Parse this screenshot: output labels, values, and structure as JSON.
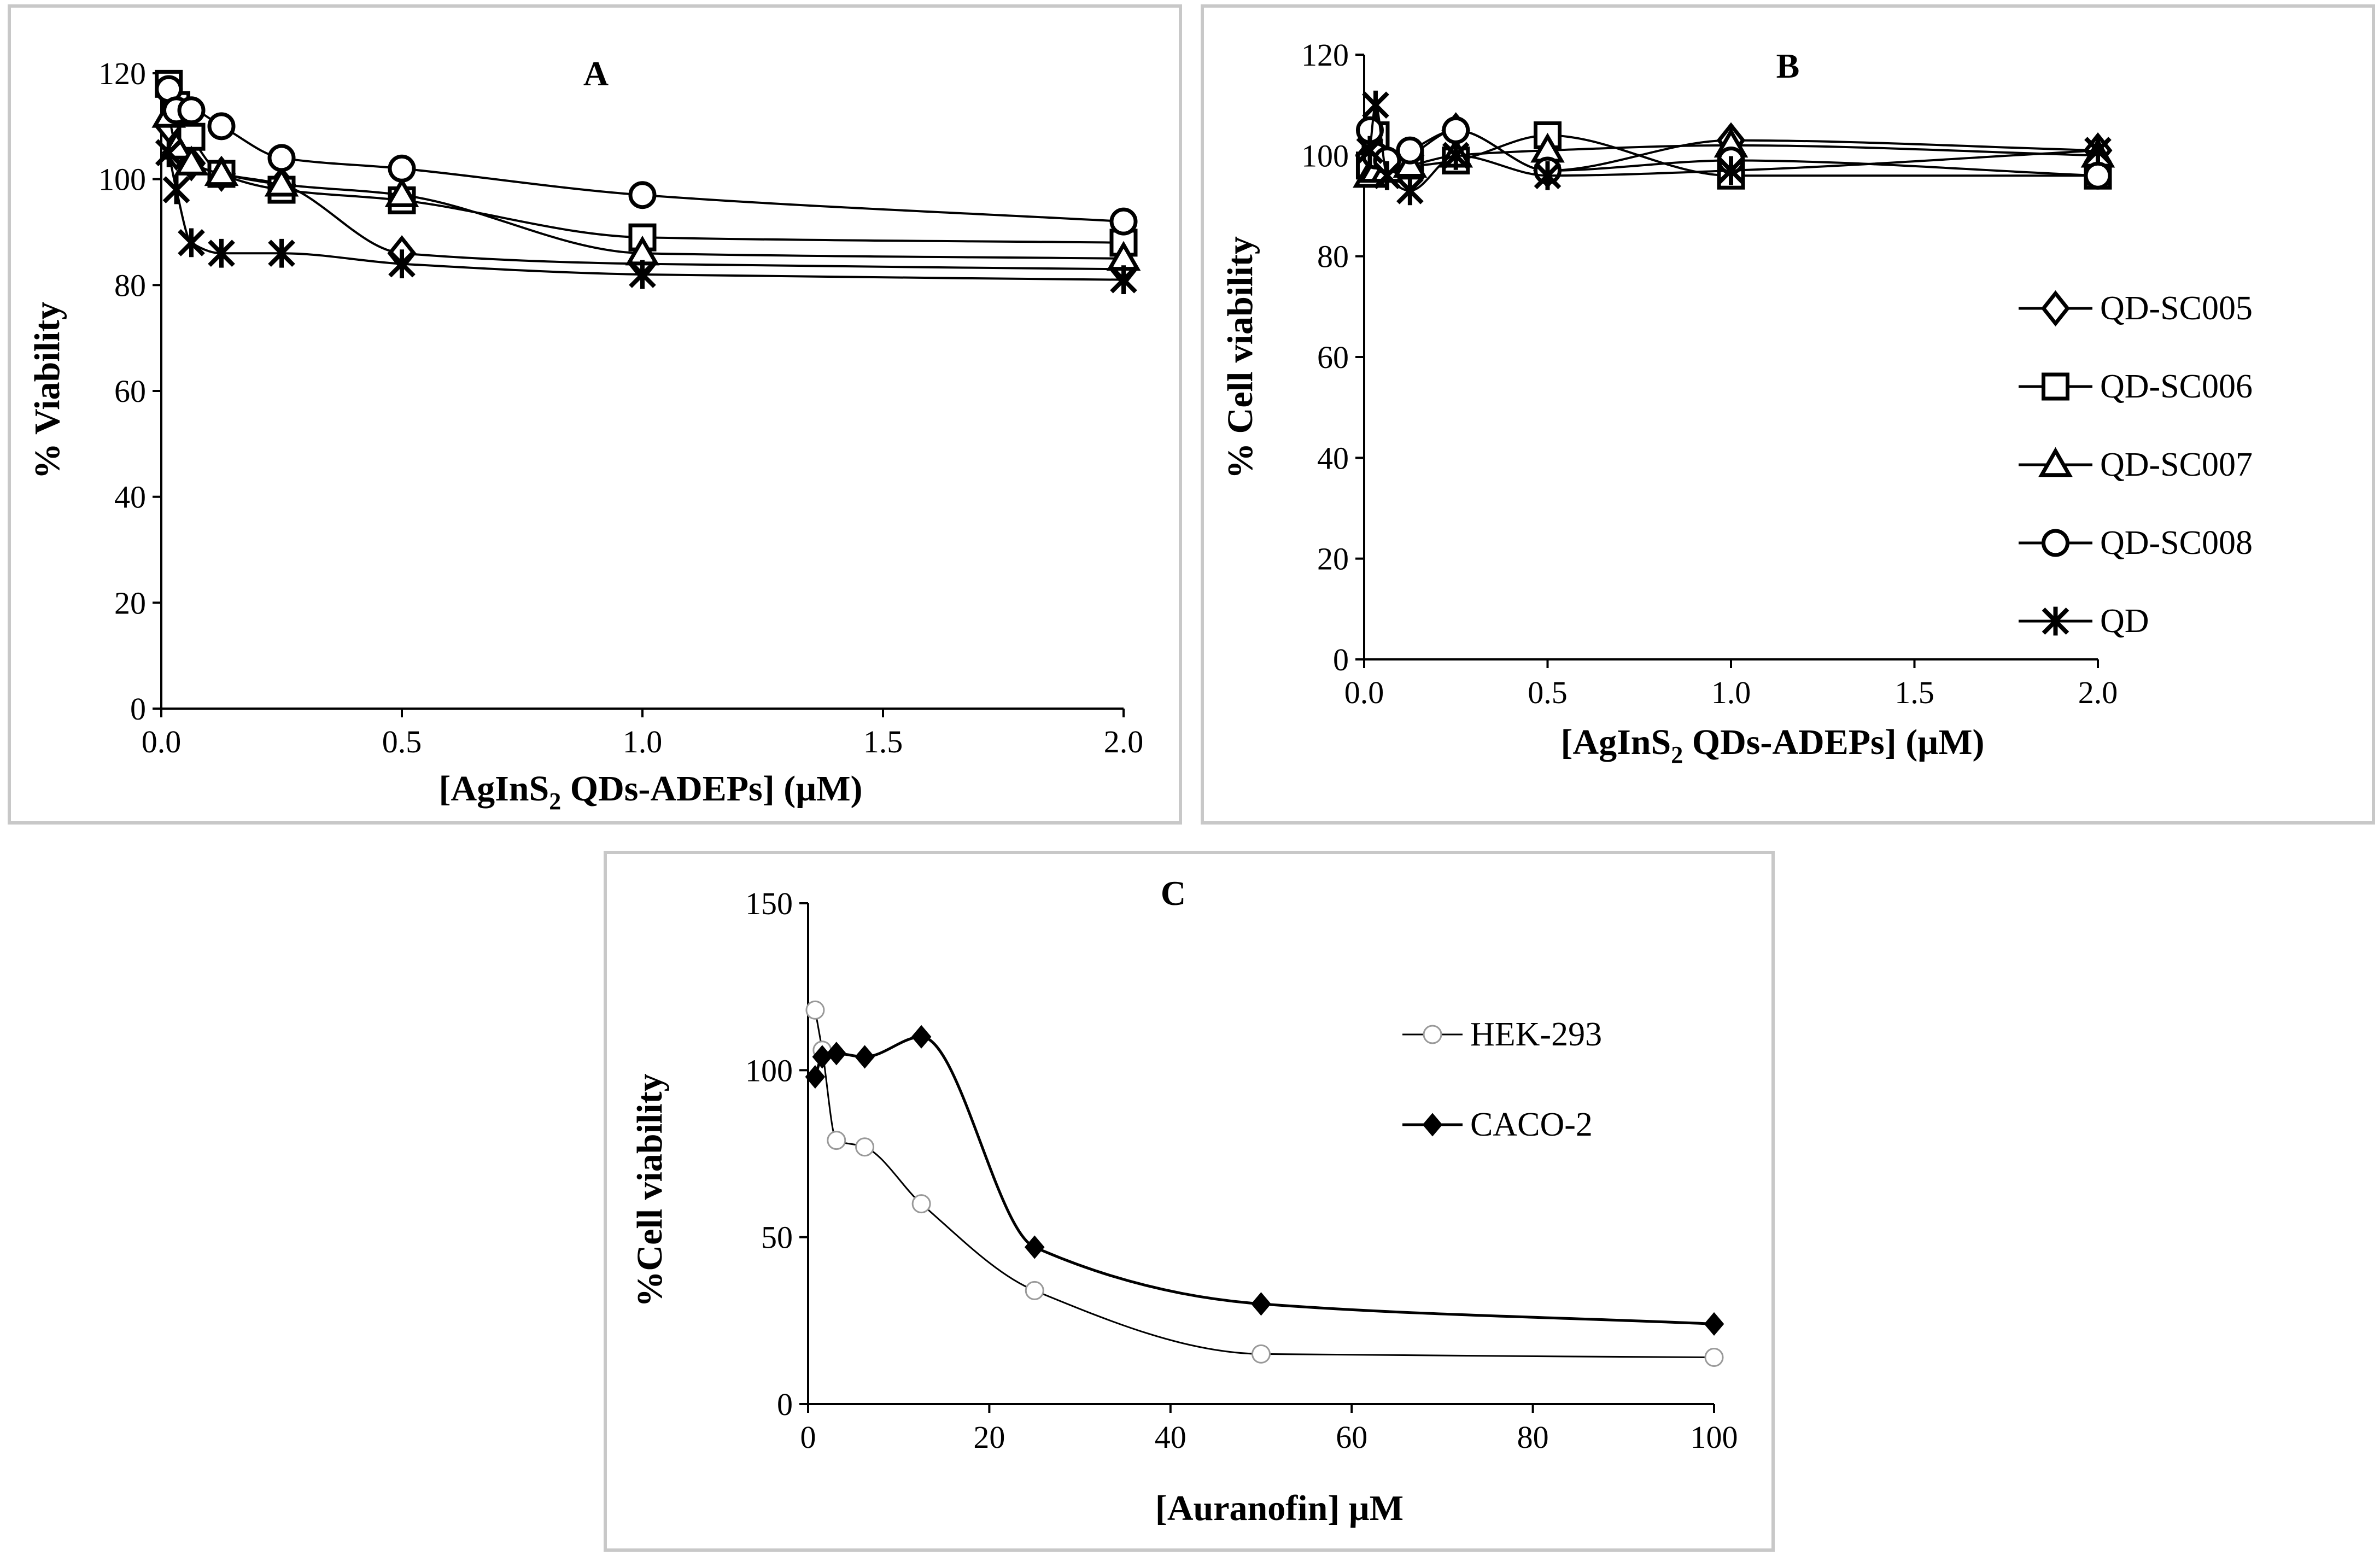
{
  "chart_data": [
    {
      "panel": "A",
      "type": "line",
      "title": "A",
      "xlabel": "[AgInS2 QDs-ADEPs] (µM)",
      "xlabel_main": "[AgInS",
      "xlabel_sub": "2",
      "xlabel_rest": " QDs-ADEPs] (µM)",
      "ylabel": "% Viability",
      "xlim": [
        0,
        2.0
      ],
      "ylim": [
        0,
        120
      ],
      "xticks": [
        "0.0",
        "0.5",
        "1.0",
        "1.5",
        "2.0"
      ],
      "yticks": [
        "0",
        "20",
        "40",
        "60",
        "80",
        "100",
        "120"
      ],
      "series": [
        {
          "marker": "diamond",
          "x": [
            0.0156,
            0.03125,
            0.0625,
            0.125,
            0.25,
            0.5,
            1.0,
            2.0
          ],
          "y": [
            110,
            105,
            103,
            101,
            99,
            86,
            84,
            83
          ]
        },
        {
          "marker": "square",
          "x": [
            0.0156,
            0.03125,
            0.0625,
            0.125,
            0.25,
            0.5,
            1.0,
            2.0
          ],
          "y": [
            118,
            114,
            108,
            101,
            98,
            96,
            89,
            88
          ]
        },
        {
          "marker": "triangle",
          "x": [
            0.0156,
            0.03125,
            0.0625,
            0.125,
            0.25,
            0.5,
            1.0,
            2.0
          ],
          "y": [
            112,
            106,
            103,
            101,
            99,
            97,
            86,
            85
          ]
        },
        {
          "marker": "circle",
          "x": [
            0.0156,
            0.03125,
            0.0625,
            0.125,
            0.25,
            0.5,
            1.0,
            2.0
          ],
          "y": [
            117,
            113,
            113,
            110,
            104,
            102,
            97,
            92
          ]
        },
        {
          "marker": "star",
          "x": [
            0.0156,
            0.03125,
            0.0625,
            0.125,
            0.25,
            0.5,
            1.0,
            2.0
          ],
          "y": [
            105,
            98,
            88,
            86,
            86,
            84,
            82,
            81
          ]
        }
      ]
    },
    {
      "panel": "B",
      "type": "line",
      "title": "B",
      "xlabel": "[AgInS2 QDs-ADEPs] (µM)",
      "xlabel_main": "[AgInS",
      "xlabel_sub": "2",
      "xlabel_rest": " QDs-ADEPs] (µM)",
      "ylabel": "% Cell viability",
      "xlim": [
        0,
        2.0
      ],
      "ylim": [
        0,
        120
      ],
      "xticks": [
        "0.0",
        "0.5",
        "1.0",
        "1.5",
        "2.0"
      ],
      "yticks": [
        "0",
        "20",
        "40",
        "60",
        "80",
        "100",
        "120"
      ],
      "legend_position": "right",
      "series": [
        {
          "name": "QD-SC005",
          "marker": "diamond",
          "x": [
            0.0156,
            0.03125,
            0.0625,
            0.125,
            0.25,
            0.5,
            1.0,
            2.0
          ],
          "y": [
            100,
            101,
            98,
            100,
            105,
            97,
            103,
            101
          ]
        },
        {
          "name": "QD-SC006",
          "marker": "square",
          "x": [
            0.0156,
            0.03125,
            0.0625,
            0.125,
            0.25,
            0.5,
            1.0,
            2.0
          ],
          "y": [
            98,
            104,
            98,
            98,
            99,
            104,
            96,
            96
          ]
        },
        {
          "name": "QD-SC007",
          "marker": "triangle",
          "x": [
            0.0156,
            0.03125,
            0.0625,
            0.125,
            0.25,
            0.5,
            1.0,
            2.0
          ],
          "y": [
            96,
            97,
            97,
            98,
            100,
            101,
            102,
            100
          ]
        },
        {
          "name": "QD-SC008",
          "marker": "circle",
          "x": [
            0.0156,
            0.03125,
            0.0625,
            0.125,
            0.25,
            0.5,
            1.0,
            2.0
          ],
          "y": [
            105,
            100,
            99,
            101,
            105,
            97,
            99,
            96
          ]
        },
        {
          "name": "QD",
          "marker": "star",
          "x": [
            0.0156,
            0.03125,
            0.0625,
            0.125,
            0.25,
            0.5,
            1.0,
            2.0
          ],
          "y": [
            101,
            110,
            96,
            93,
            100,
            96,
            97,
            101
          ]
        }
      ]
    },
    {
      "panel": "C",
      "type": "line",
      "title": "C",
      "xlabel": "[Auranofin] µM",
      "ylabel": "%Cell viability",
      "xlim": [
        0,
        100
      ],
      "ylim": [
        0,
        150
      ],
      "xticks": [
        "0",
        "20",
        "40",
        "60",
        "80",
        "100"
      ],
      "yticks": [
        "0",
        "50",
        "100",
        "150"
      ],
      "legend_position": "top-right",
      "series": [
        {
          "name": "HEK-293",
          "marker": "open-circle",
          "x": [
            0.78,
            1.56,
            3.125,
            6.25,
            12.5,
            25,
            50,
            100
          ],
          "y": [
            118,
            106,
            79,
            77,
            60,
            34,
            15,
            14
          ]
        },
        {
          "name": "CACO-2",
          "marker": "filled-diamond",
          "x": [
            0.78,
            1.56,
            3.125,
            6.25,
            12.5,
            25,
            50,
            100
          ],
          "y": [
            98,
            104,
            105,
            104,
            110,
            47,
            30,
            24
          ]
        }
      ]
    }
  ]
}
